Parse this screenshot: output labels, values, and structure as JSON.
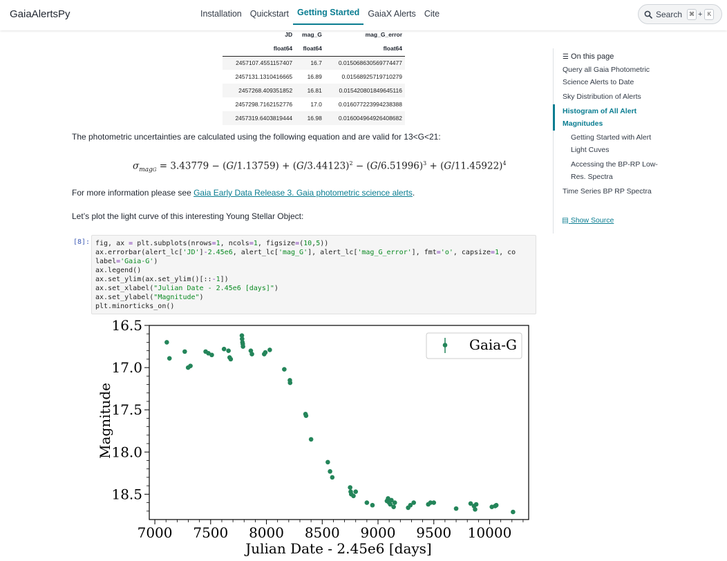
{
  "navbar": {
    "brand": "GaiaAlertsPy",
    "links": [
      "Installation",
      "Quickstart",
      "Getting Started",
      "GaiaX Alerts",
      "Cite"
    ],
    "active_link": "Getting Started",
    "search_label": "Search",
    "shortcut_key1": "⌘",
    "shortcut_plus": "+",
    "shortcut_key2": "K"
  },
  "table": {
    "columns": [
      "JD",
      "mag_G",
      "mag_G_error"
    ],
    "dtypes": [
      "float64",
      "float64",
      "float64"
    ],
    "rows": [
      [
        "2457107.4551157407",
        "16.7",
        "0.015068630569774477"
      ],
      [
        "2457131.1310416665",
        "16.89",
        "0.01568925719710279"
      ],
      [
        "2457268.409351852",
        "16.81",
        "0.015420801849645116"
      ],
      [
        "2457298.7162152776",
        "17.0",
        "0.016077223994238388"
      ],
      [
        "2457319.6403819444",
        "16.98",
        "0.016004964926408682"
      ]
    ]
  },
  "text": {
    "uncertainty_intro": "The photometric uncertainties are calculated using the following equation and are valid for 13<G<21:",
    "more_info_prefix": "For more information please see ",
    "more_info_link": "Gaia Early Data Release 3. Gaia photometric science alerts",
    "more_info_suffix": ".",
    "plot_intro": "Let’s plot the light curve of this interesting Young Stellar Object:"
  },
  "equation": {
    "lhs": "σ",
    "lhs_sub": "mag",
    "lhs_subsub": "G",
    "c0": "= 3.43779 − (",
    "t1": "G",
    "d1": "/1.13759) + (",
    "t2": "G",
    "d2": "/3.44123)",
    "p2": "2",
    "m3": " − (",
    "t3": "G",
    "d3": "/6.51996)",
    "p3": "3",
    "m4": " + (",
    "t4": "G",
    "d4": "/11.45922)",
    "p4": "4"
  },
  "code_cell": {
    "prompt": "[8]:"
  },
  "toc": {
    "title": "On this page",
    "items": [
      {
        "label": "Query all Gaia Photometric Science Alerts to Date",
        "level": 1
      },
      {
        "label": "Sky Distribution of Alerts",
        "level": 1
      },
      {
        "label": "Histogram of All Alert Magnitudes",
        "level": 1,
        "active": true
      },
      {
        "label": "Getting Started with Alert Light Cuves",
        "level": 2
      },
      {
        "label": "Accessing the BP-RP Low-Res. Spectra",
        "level": 2
      },
      {
        "label": "Time Series BP RP Spectra",
        "level": 1
      }
    ],
    "show_source": "Show Source"
  },
  "chart_data": {
    "type": "scatter",
    "xlabel": "Julian Date - 2.45e6 [days]",
    "ylabel": "Magnitude",
    "xlim": [
      6950,
      10350
    ],
    "ylim": [
      18.8,
      16.5
    ],
    "y_inverted": true,
    "xticks": [
      7000,
      7500,
      8000,
      8500,
      9000,
      9500,
      10000
    ],
    "yticks": [
      16.5,
      17.0,
      17.5,
      18.0,
      18.5
    ],
    "legend": {
      "label": "Gaia-G",
      "placement": "top-right"
    },
    "marker_color": "#24855a",
    "series": [
      {
        "name": "Gaia-G",
        "x": [
          7107,
          7131,
          7268,
          7298,
          7319,
          7455,
          7480,
          7510,
          7620,
          7660,
          7670,
          7680,
          7780,
          7782,
          7785,
          7788,
          7790,
          7860,
          7870,
          7980,
          7990,
          8030,
          8160,
          8210,
          8212,
          8350,
          8355,
          8400,
          8550,
          8570,
          8590,
          8750,
          8755,
          8760,
          8780,
          8800,
          8900,
          8950,
          9080,
          9090,
          9100,
          9110,
          9120,
          9140,
          9150,
          9270,
          9290,
          9320,
          9450,
          9470,
          9500,
          9700,
          9830,
          9860,
          9870,
          9880,
          10020,
          10050,
          10060,
          10210
        ],
        "y": [
          16.7,
          16.89,
          16.81,
          17.0,
          16.98,
          16.81,
          16.83,
          16.85,
          16.78,
          16.8,
          16.88,
          16.9,
          16.62,
          16.66,
          16.7,
          16.72,
          16.75,
          16.8,
          16.84,
          16.84,
          16.82,
          16.79,
          17.02,
          17.15,
          17.18,
          17.55,
          17.57,
          17.85,
          18.12,
          18.23,
          18.3,
          18.42,
          18.47,
          18.5,
          18.52,
          18.47,
          18.6,
          18.63,
          18.58,
          18.55,
          18.6,
          18.62,
          18.57,
          18.65,
          18.6,
          18.66,
          18.63,
          18.6,
          18.62,
          18.6,
          18.6,
          18.67,
          18.61,
          18.64,
          18.68,
          18.62,
          18.65,
          18.64,
          18.63,
          18.71
        ],
        "error": 0.016
      }
    ]
  }
}
